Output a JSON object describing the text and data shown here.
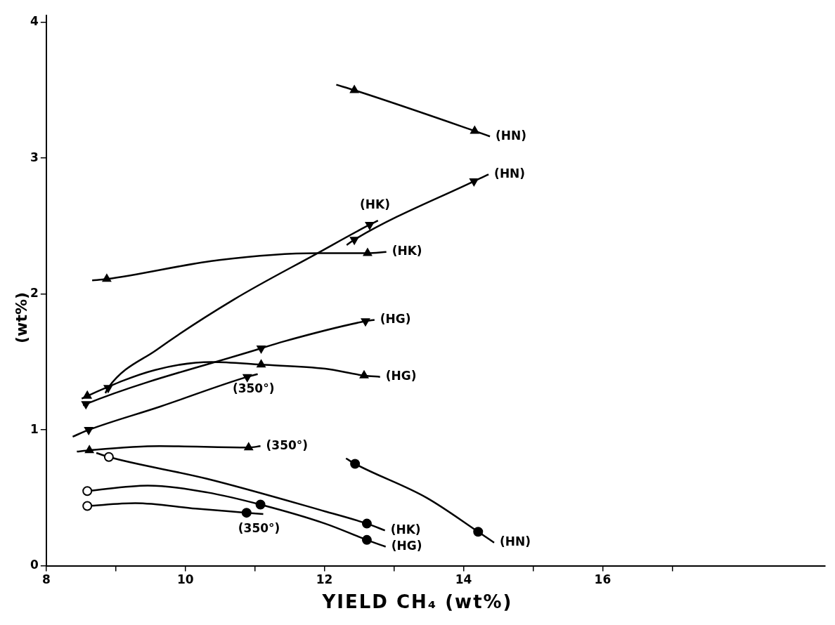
{
  "chart_data": {
    "type": "line",
    "xlabel": "YIELD CH₄ (wt%)",
    "ylabel": "(wt%)",
    "xlim": [
      8,
      19.2
    ],
    "xticks": [
      8,
      {
        "value": 9,
        "label": null
      },
      10,
      {
        "value": 11,
        "label": null
      },
      12,
      {
        "value": 13,
        "label": null
      },
      14,
      {
        "value": 15,
        "label": null
      },
      16,
      {
        "value": 17,
        "label": null
      }
    ],
    "ylim": [
      0,
      4.05
    ],
    "yticks": [
      0,
      1,
      2,
      3,
      4
    ],
    "grid": false,
    "legend": false,
    "line_style": "solid",
    "series": [
      {
        "type": "line",
        "marker": "none",
        "color": "#000000",
        "x": [
          12.17,
          12.43,
          14.16,
          14.38
        ],
        "values": [
          3.54,
          3.5,
          3.2,
          3.16
        ]
      },
      {
        "type": "line",
        "marker": "none",
        "color": "#000000",
        "x": [
          12.32,
          12.43,
          14.15,
          14.36
        ],
        "values": [
          2.36,
          2.4,
          2.83,
          2.88
        ]
      },
      {
        "type": "line",
        "marker": "none",
        "color": "#000000",
        "x": [
          8.85,
          8.89,
          9.59,
          10.7,
          11.9,
          12.65,
          12.77
        ],
        "values": [
          1.27,
          1.31,
          1.59,
          1.96,
          2.3,
          2.51,
          2.54
        ]
      },
      {
        "type": "line",
        "marker": "none",
        "color": "#000000",
        "x": [
          8.66,
          8.87,
          10.49,
          11.9,
          12.62,
          12.89
        ],
        "values": [
          2.1,
          2.11,
          2.25,
          2.3,
          2.3,
          2.31
        ]
      },
      {
        "type": "line",
        "marker": "none",
        "color": "#000000",
        "x": [
          8.53,
          8.57,
          11.09,
          11.41,
          12.59,
          12.72
        ],
        "values": [
          1.18,
          1.19,
          1.6,
          1.65,
          1.8,
          1.81
        ]
      },
      {
        "type": "line",
        "marker": "none",
        "color": "#000000",
        "x": [
          8.51,
          8.59,
          9.56,
          10.38,
          11.09,
          12.01,
          12.57,
          12.8
        ],
        "values": [
          1.23,
          1.25,
          1.44,
          1.5,
          1.48,
          1.45,
          1.4,
          1.39
        ]
      },
      {
        "type": "line",
        "marker": "none",
        "color": "#000000",
        "x": [
          8.38,
          8.61,
          9.63,
          10.89,
          11.04
        ],
        "values": [
          0.95,
          1.0,
          1.17,
          1.39,
          1.41
        ]
      },
      {
        "type": "line",
        "marker": "none",
        "color": "#000000",
        "x": [
          8.44,
          8.62,
          9.63,
          10.91,
          11.08
        ],
        "values": [
          0.84,
          0.85,
          0.88,
          0.87,
          0.88
        ]
      },
      {
        "type": "line",
        "marker": "none",
        "color": "#000000",
        "x": [
          8.72,
          8.9,
          10.31,
          12.01,
          12.61,
          12.87
        ],
        "values": [
          0.83,
          0.8,
          0.64,
          0.4,
          0.31,
          0.26
        ]
      },
      {
        "type": "line",
        "marker": "none",
        "color": "#000000",
        "x": [
          8.59,
          9.46,
          10.31,
          11.08,
          12.01,
          12.61,
          12.88
        ],
        "values": [
          0.55,
          0.59,
          0.54,
          0.45,
          0.31,
          0.19,
          0.14
        ]
      },
      {
        "type": "line",
        "marker": "none",
        "color": "#000000",
        "x": [
          8.59,
          9.28,
          10.15,
          10.88,
          11.12
        ],
        "values": [
          0.44,
          0.46,
          0.42,
          0.39,
          0.38
        ]
      },
      {
        "type": "line",
        "marker": "none",
        "color": "#000000",
        "x": [
          12.31,
          12.44,
          13.47,
          14.21,
          14.44
        ],
        "values": [
          0.79,
          0.75,
          0.5,
          0.25,
          0.17
        ]
      },
      {
        "type": "scatter",
        "marker": "triangle",
        "color": "#000000",
        "x": [
          12.43,
          14.16,
          8.87,
          12.62,
          8.59,
          11.09,
          12.57,
          8.62,
          10.91
        ],
        "values": [
          3.5,
          3.2,
          2.11,
          2.3,
          1.25,
          1.48,
          1.4,
          0.85,
          0.87
        ]
      },
      {
        "type": "scatter",
        "marker": "triangle_down",
        "color": "#000000",
        "x": [
          8.89,
          12.65,
          12.43,
          14.15,
          8.57,
          11.09,
          12.59,
          8.61,
          10.89
        ],
        "values": [
          1.31,
          2.51,
          2.4,
          2.83,
          1.19,
          1.6,
          1.8,
          1.0,
          1.39
        ]
      },
      {
        "type": "scatter",
        "marker": "circle",
        "color": "#000000",
        "x": [
          12.61,
          11.08,
          12.61,
          10.88,
          12.44,
          14.21
        ],
        "values": [
          0.31,
          0.45,
          0.19,
          0.39,
          0.75,
          0.25
        ]
      },
      {
        "type": "scatter",
        "marker": "circle",
        "color": "#ffffff",
        "x": [
          8.9,
          8.59,
          8.59
        ],
        "values": [
          0.8,
          0.55,
          0.44
        ]
      }
    ],
    "annotations": [
      {
        "text": "(HN)",
        "x": 14.38,
        "y": 3.16
      },
      {
        "text": "(HN)",
        "x": 14.36,
        "y": 2.88
      },
      {
        "text": "(HK)",
        "x": 12.77,
        "y": 2.54
      },
      {
        "text": "(HK)",
        "x": 12.89,
        "y": 2.31
      },
      {
        "text": "(HG)",
        "x": 12.72,
        "y": 1.81
      },
      {
        "text": "(HG)",
        "x": 12.8,
        "y": 1.39
      },
      {
        "text": "(350°)",
        "x": 11.04,
        "y": 1.41
      },
      {
        "text": "(350°)",
        "x": 11.08,
        "y": 0.88
      },
      {
        "text": "(HK)",
        "x": 12.87,
        "y": 0.26
      },
      {
        "text": "(HG)",
        "x": 12.88,
        "y": 0.14
      },
      {
        "text": "(350°)",
        "x": 11.12,
        "y": 0.38
      },
      {
        "text": "(HN)",
        "x": 14.44,
        "y": 0.17
      }
    ]
  }
}
